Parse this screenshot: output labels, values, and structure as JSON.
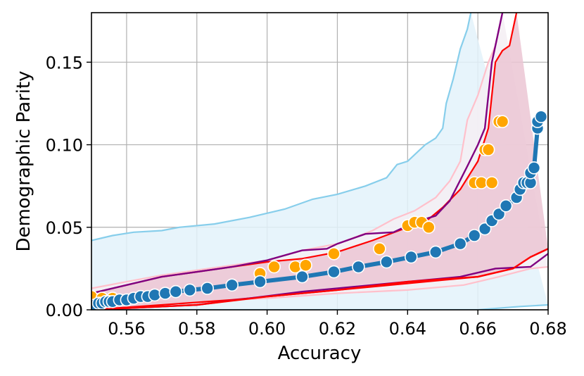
{
  "chart_data": {
    "type": "scatter",
    "title": "",
    "xlabel": "Accuracy",
    "ylabel": "Demographic Parity",
    "xlim": [
      0.55,
      0.68
    ],
    "ylim": [
      0.0,
      0.18
    ],
    "xticks": [
      0.56,
      0.58,
      0.6,
      0.62,
      0.64,
      0.66,
      0.68
    ],
    "yticks": [
      0.0,
      0.05,
      0.1,
      0.15
    ],
    "xtick_labels": [
      "0.56",
      "0.58",
      "0.60",
      "0.62",
      "0.64",
      "0.66",
      "0.68"
    ],
    "ytick_labels": [
      "0.00",
      "0.05",
      "0.10",
      "0.15"
    ],
    "grid": true,
    "bands": [
      {
        "fill": "#e3f2fa",
        "stroke": "#87ceeb",
        "upper": [
          [
            0.55,
            0.042
          ],
          [
            0.556,
            0.045
          ],
          [
            0.562,
            0.047
          ],
          [
            0.57,
            0.048
          ],
          [
            0.575,
            0.05
          ],
          [
            0.585,
            0.052
          ],
          [
            0.595,
            0.056
          ],
          [
            0.605,
            0.061
          ],
          [
            0.613,
            0.067
          ],
          [
            0.62,
            0.07
          ],
          [
            0.628,
            0.075
          ],
          [
            0.634,
            0.08
          ],
          [
            0.637,
            0.088
          ],
          [
            0.64,
            0.09
          ],
          [
            0.645,
            0.1
          ],
          [
            0.648,
            0.104
          ],
          [
            0.65,
            0.11
          ],
          [
            0.651,
            0.125
          ],
          [
            0.653,
            0.14
          ],
          [
            0.655,
            0.158
          ],
          [
            0.657,
            0.17
          ],
          [
            0.658,
            0.18
          ]
        ],
        "lower": [
          [
            0.55,
            0.0
          ],
          [
            0.6,
            0.0
          ],
          [
            0.66,
            0.0
          ],
          [
            0.672,
            0.002
          ],
          [
            0.68,
            0.003
          ]
        ]
      },
      {
        "fill": "#f5eef3",
        "stroke": "#ffc0cb",
        "upper": [
          [
            0.55,
            0.013
          ],
          [
            0.56,
            0.017
          ],
          [
            0.57,
            0.021
          ],
          [
            0.58,
            0.024
          ],
          [
            0.59,
            0.027
          ],
          [
            0.6,
            0.03
          ],
          [
            0.61,
            0.036
          ],
          [
            0.62,
            0.04
          ],
          [
            0.63,
            0.048
          ],
          [
            0.636,
            0.055
          ],
          [
            0.642,
            0.06
          ],
          [
            0.648,
            0.068
          ],
          [
            0.652,
            0.078
          ],
          [
            0.655,
            0.09
          ],
          [
            0.657,
            0.115
          ],
          [
            0.66,
            0.13
          ],
          [
            0.663,
            0.15
          ],
          [
            0.665,
            0.16
          ],
          [
            0.667,
            0.18
          ]
        ],
        "lower": [
          [
            0.55,
            0.004
          ],
          [
            0.58,
            0.005
          ],
          [
            0.6,
            0.007
          ],
          [
            0.62,
            0.01
          ],
          [
            0.64,
            0.012
          ],
          [
            0.656,
            0.015
          ],
          [
            0.666,
            0.02
          ],
          [
            0.675,
            0.025
          ],
          [
            0.68,
            0.026
          ]
        ]
      },
      {
        "fill": "#ebc6d3",
        "stroke": "#ff0000",
        "upper": [
          [
            0.55,
            0.01
          ],
          [
            0.56,
            0.015
          ],
          [
            0.57,
            0.02
          ],
          [
            0.58,
            0.023
          ],
          [
            0.59,
            0.026
          ],
          [
            0.6,
            0.029
          ],
          [
            0.61,
            0.031
          ],
          [
            0.62,
            0.035
          ],
          [
            0.63,
            0.042
          ],
          [
            0.64,
            0.05
          ],
          [
            0.646,
            0.055
          ],
          [
            0.65,
            0.062
          ],
          [
            0.655,
            0.073
          ],
          [
            0.66,
            0.09
          ],
          [
            0.663,
            0.11
          ],
          [
            0.664,
            0.13
          ],
          [
            0.665,
            0.15
          ],
          [
            0.667,
            0.157
          ],
          [
            0.669,
            0.16
          ],
          [
            0.67,
            0.17
          ],
          [
            0.671,
            0.18
          ]
        ],
        "lower": [
          [
            0.55,
            0.0
          ],
          [
            0.57,
            0.003
          ],
          [
            0.59,
            0.006
          ],
          [
            0.61,
            0.01
          ],
          [
            0.64,
            0.016
          ],
          [
            0.66,
            0.02
          ],
          [
            0.67,
            0.025
          ],
          [
            0.675,
            0.032
          ],
          [
            0.68,
            0.037
          ]
        ]
      }
    ],
    "lines": [
      {
        "color": "#800080",
        "points": [
          [
            0.55,
            0.01
          ],
          [
            0.56,
            0.015
          ],
          [
            0.57,
            0.02
          ],
          [
            0.58,
            0.023
          ],
          [
            0.59,
            0.026
          ],
          [
            0.6,
            0.03
          ],
          [
            0.61,
            0.036
          ],
          [
            0.617,
            0.037
          ],
          [
            0.62,
            0.04
          ],
          [
            0.628,
            0.046
          ],
          [
            0.636,
            0.047
          ],
          [
            0.642,
            0.053
          ],
          [
            0.648,
            0.057
          ],
          [
            0.652,
            0.066
          ],
          [
            0.657,
            0.087
          ],
          [
            0.66,
            0.1
          ],
          [
            0.662,
            0.11
          ],
          [
            0.664,
            0.15
          ],
          [
            0.666,
            0.17
          ],
          [
            0.667,
            0.18
          ]
        ]
      },
      {
        "color": "#800080",
        "points": [
          [
            0.55,
            0.0
          ],
          [
            0.58,
            0.003
          ],
          [
            0.61,
            0.011
          ],
          [
            0.64,
            0.017
          ],
          [
            0.655,
            0.02
          ],
          [
            0.665,
            0.025
          ],
          [
            0.675,
            0.026
          ],
          [
            0.68,
            0.034
          ]
        ]
      },
      {
        "color": "#ff0000",
        "points": [
          [
            0.55,
            0.0
          ],
          [
            0.58,
            0.003
          ],
          [
            0.6,
            0.008
          ],
          [
            0.62,
            0.012
          ],
          [
            0.64,
            0.017
          ],
          [
            0.66,
            0.02
          ],
          [
            0.67,
            0.025
          ],
          [
            0.675,
            0.032
          ],
          [
            0.68,
            0.037
          ]
        ]
      }
    ],
    "series": [
      {
        "color": "#ffa500",
        "marker": "circle",
        "x": [
          0.55,
          0.553,
          0.556,
          0.598,
          0.602,
          0.608,
          0.611,
          0.619,
          0.632,
          0.64,
          0.642,
          0.644,
          0.646,
          0.659,
          0.661,
          0.662,
          0.663,
          0.664,
          0.666,
          0.667
        ],
        "y": [
          0.008,
          0.007,
          0.007,
          0.022,
          0.026,
          0.026,
          0.027,
          0.034,
          0.037,
          0.051,
          0.053,
          0.053,
          0.05,
          0.077,
          0.077,
          0.097,
          0.097,
          0.077,
          0.114,
          0.114
        ]
      },
      {
        "color": "#1f77b4",
        "marker": "circle",
        "connected": true,
        "x": [
          0.551,
          0.552,
          0.553,
          0.554,
          0.555,
          0.556,
          0.558,
          0.56,
          0.562,
          0.564,
          0.566,
          0.568,
          0.571,
          0.574,
          0.578,
          0.583,
          0.59,
          0.598,
          0.61,
          0.619,
          0.626,
          0.634,
          0.641,
          0.648,
          0.655,
          0.659,
          0.662,
          0.664,
          0.666,
          0.668,
          0.671,
          0.672,
          0.673,
          0.674,
          0.675,
          0.675,
          0.676,
          0.677,
          0.677,
          0.678
        ],
        "y": [
          0.003,
          0.004,
          0.004,
          0.005,
          0.005,
          0.005,
          0.006,
          0.006,
          0.007,
          0.008,
          0.008,
          0.009,
          0.01,
          0.011,
          0.012,
          0.013,
          0.015,
          0.017,
          0.02,
          0.023,
          0.026,
          0.029,
          0.032,
          0.035,
          0.04,
          0.045,
          0.049,
          0.054,
          0.058,
          0.063,
          0.068,
          0.073,
          0.077,
          0.077,
          0.077,
          0.083,
          0.086,
          0.11,
          0.114,
          0.117
        ]
      }
    ]
  }
}
